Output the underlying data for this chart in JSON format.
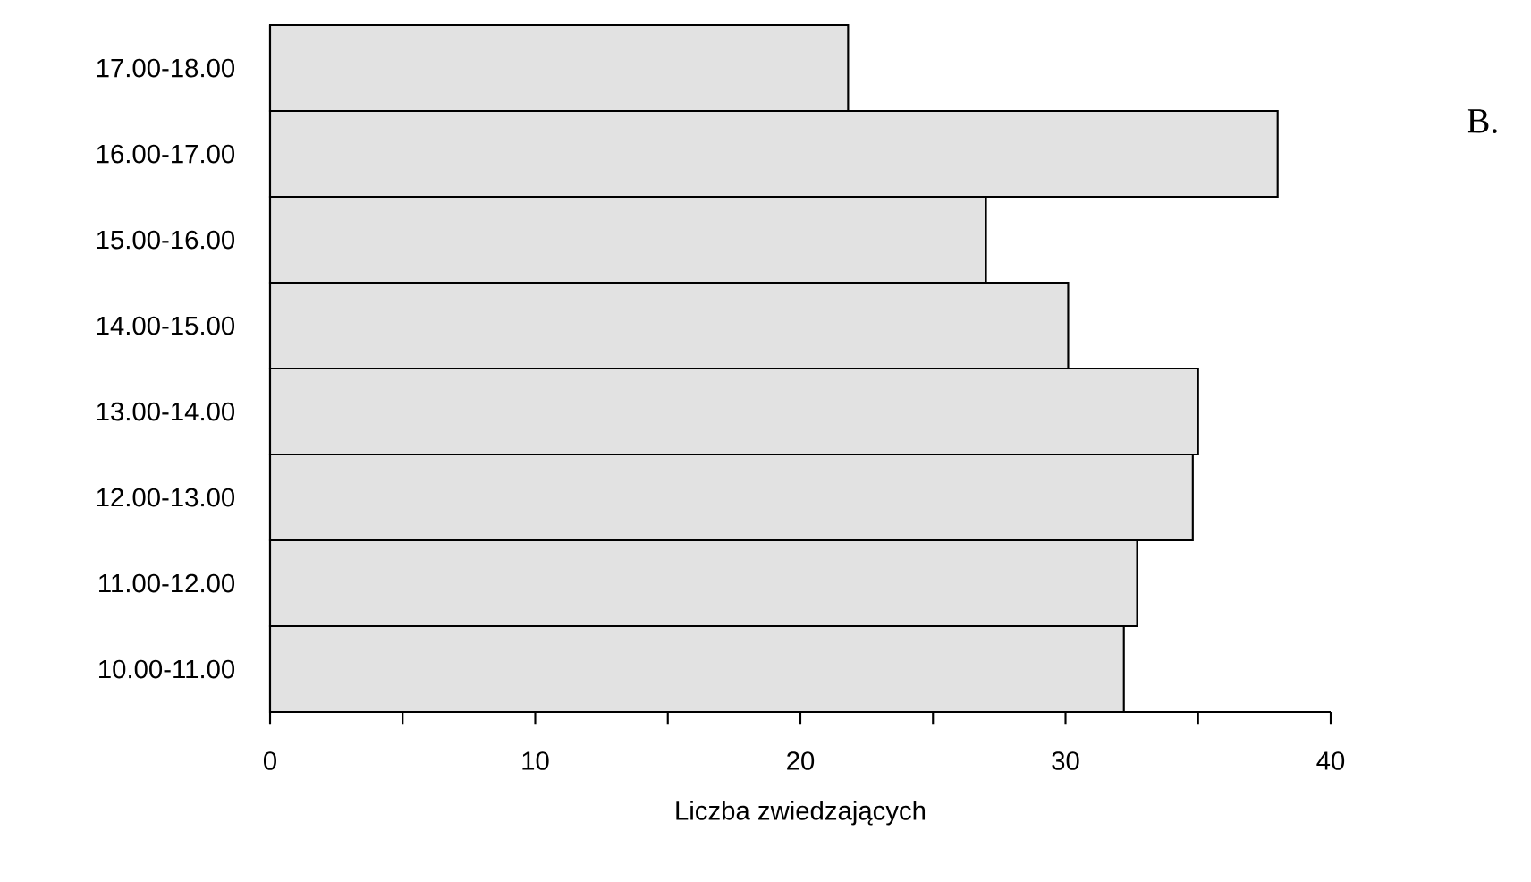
{
  "chart_data": {
    "type": "bar",
    "orientation": "horizontal",
    "xlabel": "Liczba zwiedzających",
    "categories": [
      "17.00-18.00",
      "16.00-17.00",
      "15.00-16.00",
      "14.00-15.00",
      "13.00-14.00",
      "12.00-13.00",
      "11.00-12.00",
      "10.00-11.00"
    ],
    "values": [
      21.8,
      38.0,
      27.0,
      30.1,
      35.0,
      34.8,
      32.7,
      32.2
    ],
    "color": "#e2e2e2",
    "xlim": [
      0,
      40
    ],
    "xticks": [
      0,
      {
        "value": 5,
        "label": null
      },
      10,
      {
        "value": 15,
        "label": null
      },
      20,
      {
        "value": 25,
        "label": null
      },
      30,
      {
        "value": 35,
        "label": null
      },
      40
    ],
    "grid": false,
    "annotations": [
      "B."
    ]
  }
}
